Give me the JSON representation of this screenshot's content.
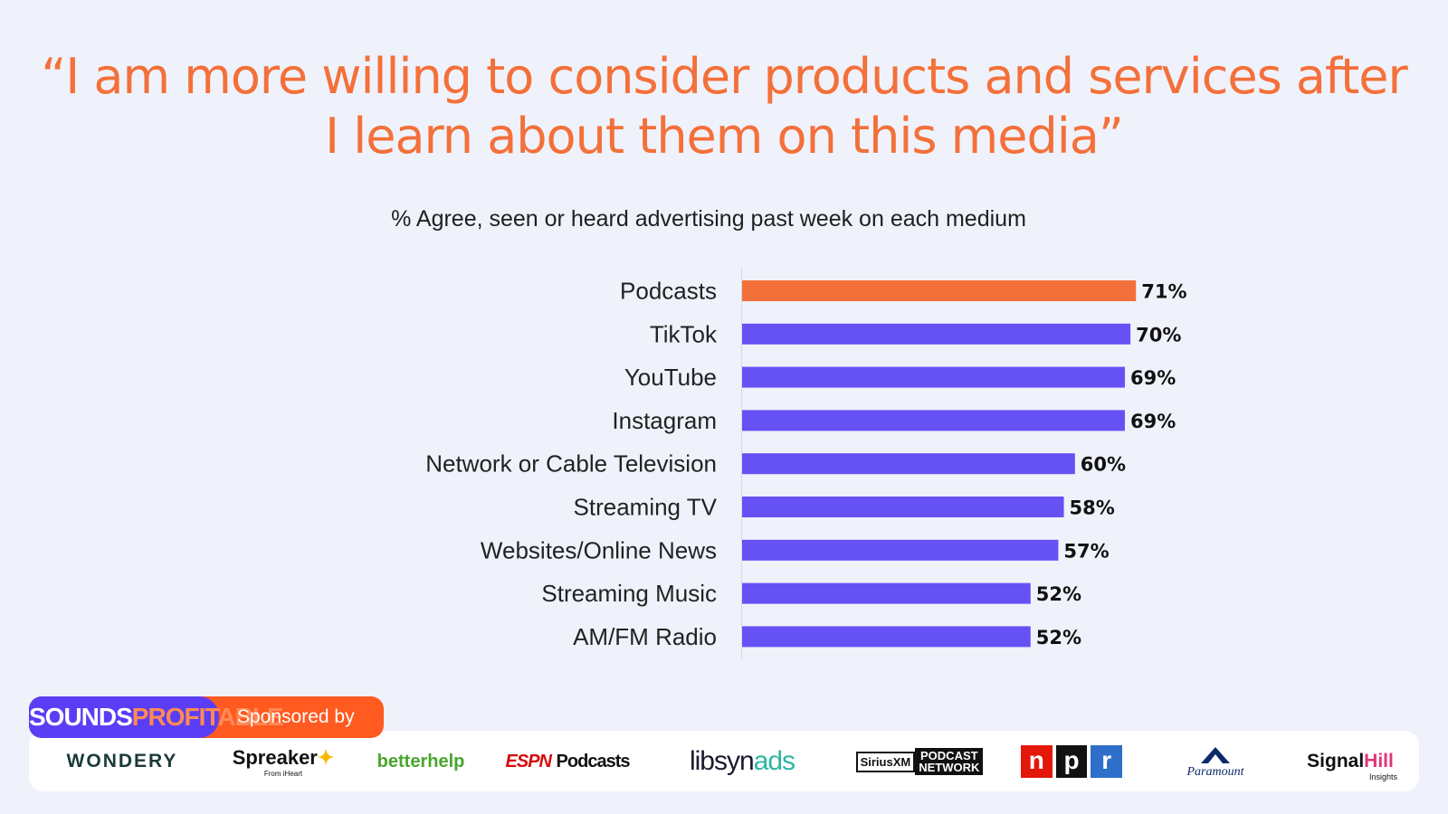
{
  "title_line1": "“I am more willing to consider products and services after",
  "title_line2": "I learn about them on this media”",
  "chart_data": {
    "type": "bar",
    "orientation": "horizontal",
    "title": "% Agree, seen or heard advertising past week on each medium",
    "categories": [
      "Podcasts",
      "TikTok",
      "YouTube",
      "Instagram",
      "Network or Cable Television",
      "Streaming TV",
      "Websites/Online News",
      "Streaming Music",
      "AM/FM Radio"
    ],
    "values": [
      71,
      70,
      69,
      69,
      60,
      58,
      57,
      52,
      52
    ],
    "value_labels": [
      "71%",
      "70%",
      "69%",
      "69%",
      "60%",
      "58%",
      "57%",
      "52%",
      "52%"
    ],
    "highlight_category": "Podcasts",
    "highlight_color": "#f4703a",
    "bar_color": "#6651f5",
    "xlim": [
      0,
      100
    ],
    "xlabel": "",
    "ylabel": "",
    "grid": false
  },
  "footer": {
    "brand_part1": "SOUNDS",
    "brand_part2": "PROFITABLE",
    "sponsored_label": "Sponsored by",
    "sponsors": {
      "wondery": "WONDERY",
      "spreaker": "Spreaker",
      "spreaker_sub": "From iHeart",
      "betterhelp": "betterhelp",
      "espn_mark": "ESPN",
      "espn_text": "Podcasts",
      "libsyn": "libsyn",
      "libsyn_ads": "ads",
      "siriusxm": "SiriusXM",
      "siriusxm_network_1": "PODCAST",
      "siriusxm_network_2": "NETWORK",
      "npr_n": "n",
      "npr_p": "p",
      "npr_r": "r",
      "paramount": "Paramount",
      "signal": "Signal",
      "signal_hill": "Hill",
      "signal_sub": "Insights"
    }
  }
}
